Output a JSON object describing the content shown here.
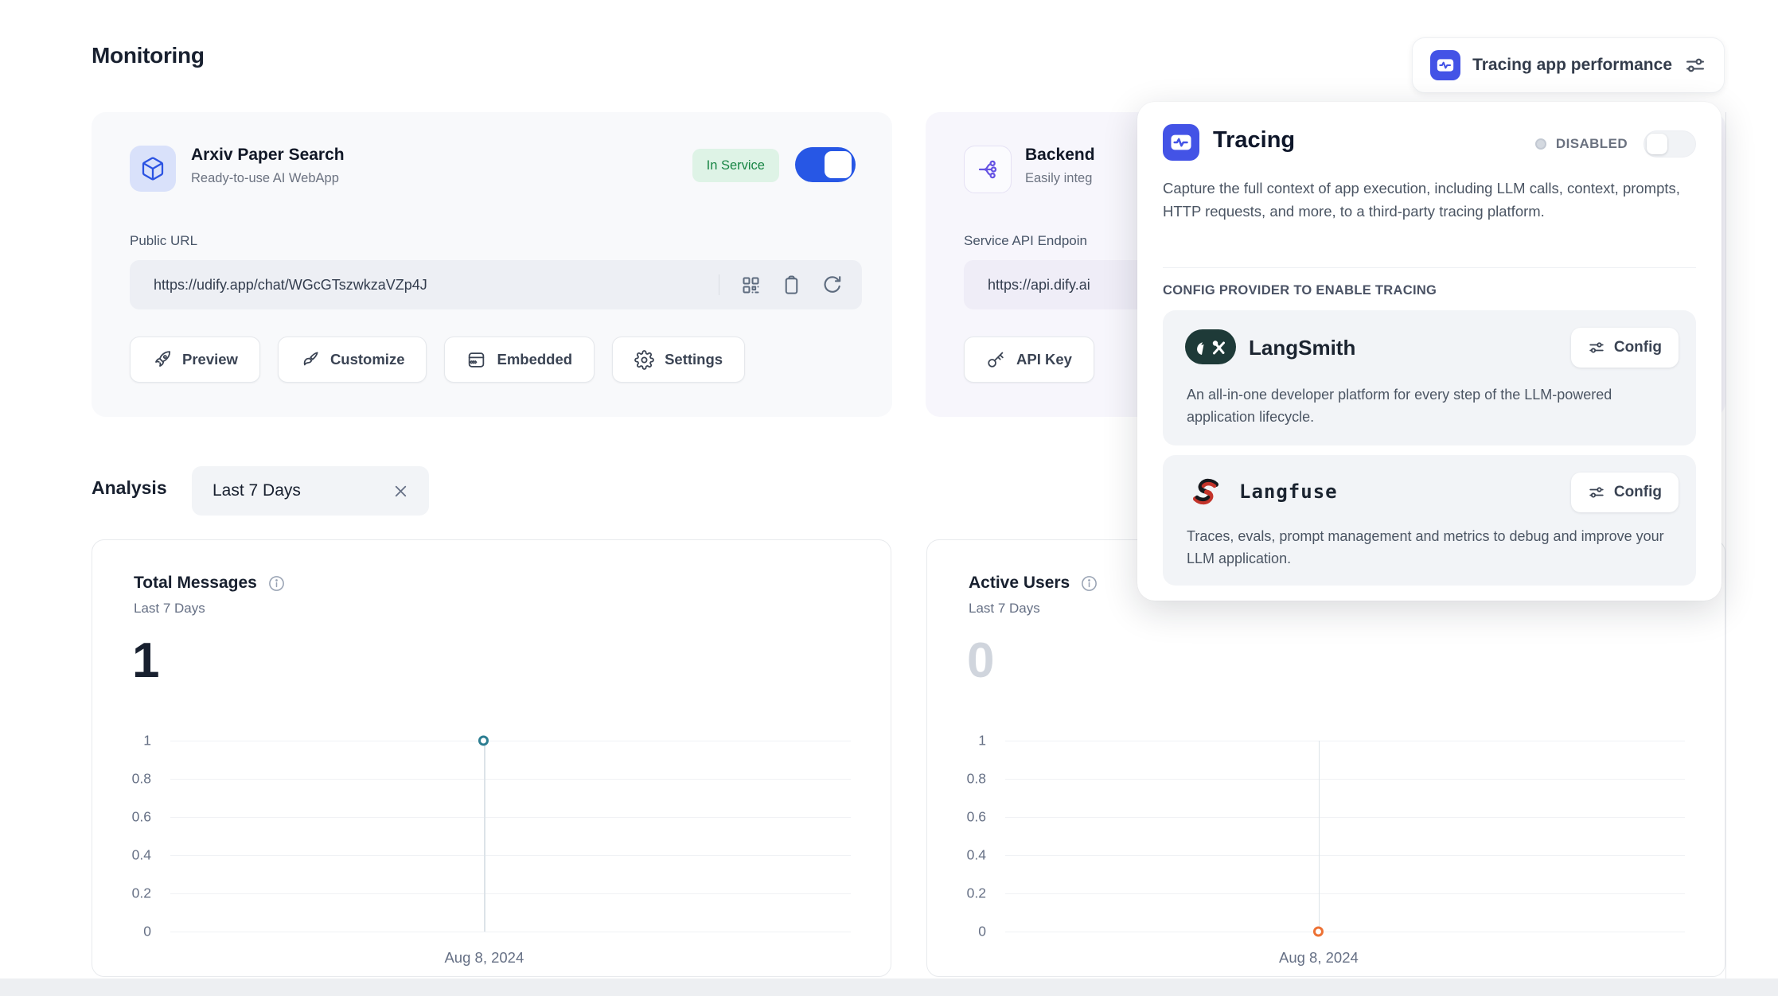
{
  "page": {
    "title": "Monitoring"
  },
  "header_button": {
    "label": "Tracing app performance"
  },
  "webapp_card": {
    "title": "Arxiv Paper Search",
    "subtitle": "Ready-to-use AI WebApp",
    "status_badge": "In Service",
    "toggle_state": "on",
    "public_url_label": "Public URL",
    "public_url": "https://udify.app/chat/WGcGTszwkzaVZp4J",
    "buttons": {
      "preview": "Preview",
      "customize": "Customize",
      "embedded": "Embedded",
      "settings": "Settings"
    }
  },
  "api_card": {
    "title": "Backend",
    "subtitle": "Easily integ",
    "endpoint_label": "Service API Endpoin",
    "endpoint_url": "https://api.dify.ai",
    "api_key_button": "API Key"
  },
  "tracing_popup": {
    "title": "Tracing",
    "status": "DISABLED",
    "toggle_state": "off",
    "description": "Capture the full context of app execution, including LLM calls, context, prompts, HTTP requests, and more, to a third-party tracing platform.",
    "section_label": "CONFIG PROVIDER TO ENABLE TRACING",
    "providers": [
      {
        "name": "LangSmith",
        "config_label": "Config",
        "description": "An all-in-one developer platform for every step of the LLM-powered application lifecycle."
      },
      {
        "name": "Langfuse",
        "config_label": "Config",
        "description": "Traces, evals, prompt management and metrics to debug and improve your LLM application."
      }
    ]
  },
  "analysis": {
    "label": "Analysis",
    "filter": "Last 7 Days"
  },
  "chart_data": [
    {
      "type": "line",
      "title": "Total Messages",
      "subtitle": "Last 7 Days",
      "total": "1",
      "x": [
        "Aug 8, 2024"
      ],
      "values": [
        1
      ],
      "ylim": [
        0,
        1
      ],
      "yticks": [
        0,
        0.2,
        0.4,
        0.6,
        0.8,
        1
      ],
      "grid": true,
      "legend": "none",
      "point_color": "#2d7e92"
    },
    {
      "type": "line",
      "title": "Active Users",
      "subtitle": "Last 7 Days",
      "total": "0",
      "x": [
        "Aug 8, 2024"
      ],
      "values": [
        0
      ],
      "ylim": [
        0,
        1
      ],
      "yticks": [
        0,
        0.2,
        0.4,
        0.6,
        0.8,
        1
      ],
      "grid": true,
      "legend": "none",
      "point_color": "#ed7235"
    }
  ],
  "colors": {
    "accent_blue": "#2757e5",
    "app_icon_blue": "#4353e6",
    "badge_green_bg": "#def3e6",
    "badge_green_text": "#188544",
    "messages_point": "#2d7e92",
    "users_point": "#ed7235"
  }
}
